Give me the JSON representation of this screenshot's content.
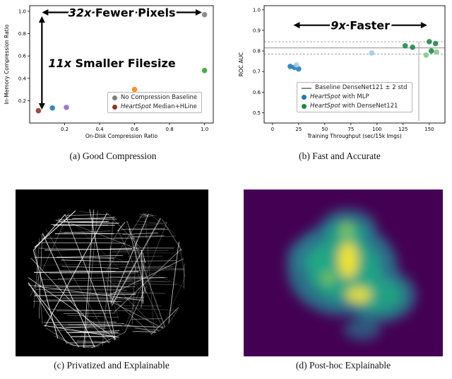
{
  "captions": {
    "a": "(a) Good Compression",
    "b": "(b) Fast and Accurate",
    "c": "(c) Privatized and Explainable",
    "d": "(d) Post-hoc Explainable"
  },
  "chart_data": [
    {
      "id": "compression-scatter",
      "type": "scatter",
      "xlabel": "On-Disk Compression Ratio",
      "ylabel": "In-Memory Compression Ratio",
      "xlim": [
        0,
        1.05
      ],
      "ylim": [
        0,
        1.05
      ],
      "xticks": [
        0.2,
        0.4,
        0.6,
        0.8,
        1.0
      ],
      "yticks": [
        0.2,
        0.4,
        0.6,
        0.8,
        1.0
      ],
      "xtick_dec": 1,
      "ytick_dec": 1,
      "series": [
        {
          "name": "No Compression Baseline",
          "color": "#7f7f7f",
          "points": [
            [
              1.0,
              0.97
            ]
          ]
        },
        {
          "name": "HeartSpot Median+HLine",
          "color": "#8b3626",
          "points": [
            [
              0.05,
              0.11
            ]
          ]
        },
        {
          "name": "variant-blue",
          "color": "#1f77b4",
          "points": [
            [
              0.13,
              0.135
            ]
          ]
        },
        {
          "name": "variant-purple",
          "color": "#9467bd",
          "points": [
            [
              0.21,
              0.14
            ]
          ]
        },
        {
          "name": "variant-orange",
          "color": "#ff7f0e",
          "points": [
            [
              0.6,
              0.3
            ]
          ]
        },
        {
          "name": "variant-green",
          "color": "#33a02c",
          "points": [
            [
              1.0,
              0.47
            ]
          ]
        }
      ],
      "annotations": [
        {
          "math": "32x",
          "rest": " Fewer Pixels",
          "orient": "h",
          "y": 0.99,
          "x1": 0.07,
          "x2": 0.985
        },
        {
          "math": "11x",
          "rest": " Smaller Filesize",
          "orient": "v",
          "x": 0.07,
          "y1": 0.955,
          "y2": 0.12
        }
      ],
      "legend": [
        {
          "marker": "dot",
          "color": "#7f7f7f",
          "em": "",
          "label": "No Compression Baseline"
        },
        {
          "marker": "dot",
          "color": "#8b3626",
          "em": "HeartSpot",
          "label": " Median+HLine"
        }
      ]
    },
    {
      "id": "speed-accuracy-scatter",
      "type": "scatter",
      "xlabel": "Training Throughput (sec/15k Imgs)",
      "ylabel": "ROC AUC",
      "xlim": [
        -8,
        165
      ],
      "ylim": [
        0.45,
        1.02
      ],
      "xticks": [
        0,
        25,
        50,
        75,
        100,
        125,
        150
      ],
      "yticks": [
        0.5,
        0.6,
        0.7,
        0.8,
        0.9,
        1.0
      ],
      "xtick_dec": 0,
      "ytick_dec": 1,
      "hlines": [
        {
          "y": 0.815,
          "style": "solid"
        },
        {
          "y": 0.845,
          "style": "dashed"
        },
        {
          "y": 0.785,
          "style": "dashed"
        }
      ],
      "vlines": [
        {
          "x": 140,
          "y1": 0.845,
          "y2": 0.46
        }
      ],
      "series": [
        {
          "name": "HeartSpot with MLP",
          "color": "#1f77b4",
          "points": [
            [
              17,
              0.725
            ],
            [
              21,
              0.72
            ],
            [
              25,
              0.713
            ]
          ]
        },
        {
          "name": "HeartSpot with MLP (light)",
          "color": "#9ecae1",
          "points": [
            [
              95,
              0.79
            ],
            [
              23,
              0.732
            ]
          ]
        },
        {
          "name": "HeartSpot with DenseNet121",
          "color": "#1e8449",
          "points": [
            [
              127,
              0.825
            ],
            [
              134,
              0.818
            ],
            [
              150,
              0.845
            ],
            [
              156,
              0.836
            ],
            [
              152,
              0.8
            ]
          ]
        },
        {
          "name": "HeartSpot with DenseNet121 (light)",
          "color": "#82c785",
          "points": [
            [
              147,
              0.78
            ],
            [
              157,
              0.795
            ]
          ]
        }
      ],
      "annotations": [
        {
          "math": "9x",
          "rest": " Faster",
          "orient": "h",
          "y": 0.925,
          "x1": 20,
          "x2": 148
        }
      ],
      "legend": [
        {
          "marker": "line",
          "color": "#8a8a8a",
          "em": "",
          "label": "Baseline DenseNet121 ± 2 std"
        },
        {
          "marker": "dot",
          "color": "#1f77b4",
          "em": "HeartSpot",
          "label": " with MLP"
        },
        {
          "marker": "dot",
          "color": "#1e8449",
          "em": "HeartSpot",
          "label": " with DenseNet121"
        }
      ]
    }
  ]
}
